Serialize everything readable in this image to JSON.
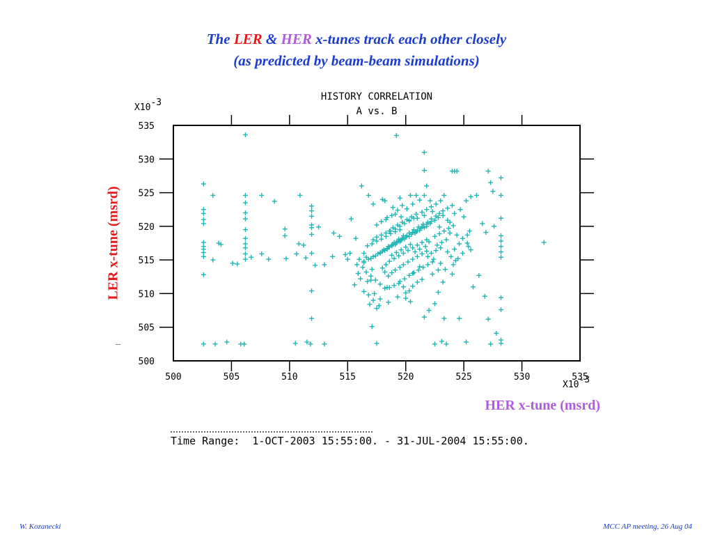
{
  "slide": {
    "title_line1": {
      "pre": "The ",
      "ler": "LER",
      "amp": " & ",
      "her": "HER",
      "post": " x-tunes track each other closely"
    },
    "title_line2": "(as predicted by beam-beam simulations)",
    "ylabel": "LER x-tune (msrd)",
    "xlabel": "HER x-tune (msrd)",
    "time_range_label": "Time Range:",
    "time_range_value": "1-OCT-2003 15:55:00. - 31-JUL-2004 15:55:00.",
    "footer_left": "W. Kozanecki",
    "footer_right": "MCC AP meeting, 26 Aug 04"
  },
  "colors": {
    "title": "#1a3ccf",
    "ler": "#e8191b",
    "her": "#b15ce0",
    "points": "#20b5b5"
  },
  "chart_data": {
    "type": "scatter",
    "title": "HISTORY CORRELATION",
    "subtitle": "A vs. B",
    "x_multiplier": "X10-3",
    "y_multiplier": "X10-3",
    "xlim": [
      500,
      535
    ],
    "ylim": [
      500,
      535
    ],
    "xticks": [
      "500",
      "505",
      "510",
      "515",
      "520",
      "525",
      "530",
      "535"
    ],
    "yticks": [
      "500",
      "505",
      "510",
      "515",
      "520",
      "525",
      "530",
      "535"
    ],
    "marker": "+",
    "grid": false,
    "points": [
      [
        502.6,
        526.3
      ],
      [
        502.6,
        522.5
      ],
      [
        502.6,
        521.9
      ],
      [
        502.6,
        521.0
      ],
      [
        502.6,
        520.4
      ],
      [
        502.6,
        517.6
      ],
      [
        502.6,
        517.0
      ],
      [
        502.6,
        516.6
      ],
      [
        502.6,
        516.1
      ],
      [
        502.6,
        515.5
      ],
      [
        502.6,
        512.8
      ],
      [
        502.6,
        502.5
      ],
      [
        503.4,
        524.6
      ],
      [
        503.4,
        515.0
      ],
      [
        503.9,
        517.5
      ],
      [
        504.1,
        517.3
      ],
      [
        503.6,
        502.5
      ],
      [
        504.6,
        502.8
      ],
      [
        505.1,
        514.5
      ],
      [
        505.5,
        514.4
      ],
      [
        505.8,
        502.5
      ],
      [
        506.1,
        502.5
      ],
      [
        506.2,
        533.6
      ],
      [
        506.2,
        524.6
      ],
      [
        506.2,
        523.5
      ],
      [
        506.2,
        522.0
      ],
      [
        506.2,
        521.1
      ],
      [
        506.2,
        519.5
      ],
      [
        506.2,
        518.2
      ],
      [
        506.2,
        517.4
      ],
      [
        506.2,
        516.8
      ],
      [
        506.2,
        515.9
      ],
      [
        506.2,
        515.1
      ],
      [
        506.7,
        515.4
      ],
      [
        507.6,
        524.6
      ],
      [
        507.6,
        515.9
      ],
      [
        508.2,
        515.1
      ],
      [
        508.7,
        523.7
      ],
      [
        509.6,
        519.6
      ],
      [
        509.6,
        518.6
      ],
      [
        509.7,
        515.2
      ],
      [
        510.5,
        502.6
      ],
      [
        510.9,
        524.6
      ],
      [
        510.8,
        517.4
      ],
      [
        510.6,
        515.9
      ],
      [
        511.5,
        502.8
      ],
      [
        511.8,
        502.5
      ],
      [
        511.9,
        523.0
      ],
      [
        511.9,
        522.3
      ],
      [
        511.9,
        521.5
      ],
      [
        511.9,
        520.2
      ],
      [
        511.9,
        519.8
      ],
      [
        511.9,
        518.8
      ],
      [
        511.9,
        516.0
      ],
      [
        511.9,
        510.4
      ],
      [
        511.9,
        506.3
      ],
      [
        512.5,
        519.9
      ],
      [
        511.2,
        517.2
      ],
      [
        511.4,
        515.3
      ],
      [
        512.2,
        514.2
      ],
      [
        513.0,
        502.5
      ],
      [
        513.0,
        514.3
      ],
      [
        513.8,
        519.0
      ],
      [
        513.7,
        515.5
      ],
      [
        514.3,
        518.5
      ],
      [
        514.8,
        515.8
      ],
      [
        515.0,
        515.1
      ],
      [
        515.2,
        516.0
      ],
      [
        515.3,
        521.1
      ],
      [
        515.7,
        518.2
      ],
      [
        515.8,
        514.3
      ],
      [
        516.2,
        526.0
      ],
      [
        516.4,
        514.6
      ],
      [
        516.6,
        515.4
      ],
      [
        516.8,
        524.6
      ],
      [
        517.0,
        512.0
      ],
      [
        517.2,
        523.3
      ],
      [
        517.5,
        502.6
      ],
      [
        518.0,
        524.0
      ],
      [
        518.2,
        523.8
      ],
      [
        518.9,
        522.8
      ],
      [
        519.2,
        533.5
      ],
      [
        519.5,
        524.2
      ],
      [
        520.4,
        524.6
      ],
      [
        520.9,
        524.6
      ],
      [
        521.6,
        531.0
      ],
      [
        521.6,
        528.3
      ],
      [
        521.8,
        526.0
      ],
      [
        522.5,
        502.5
      ],
      [
        523.1,
        502.9
      ],
      [
        523.3,
        524.6
      ],
      [
        523.5,
        502.5
      ],
      [
        523.8,
        520.6
      ],
      [
        523.8,
        519.0
      ],
      [
        524.0,
        528.2
      ],
      [
        524.2,
        528.2
      ],
      [
        524.4,
        528.2
      ],
      [
        524.0,
        512.9
      ],
      [
        523.3,
        506.3
      ],
      [
        524.6,
        506.3
      ],
      [
        525.2,
        502.8
      ],
      [
        525.3,
        517.5
      ],
      [
        525.6,
        516.5
      ],
      [
        525.8,
        511.0
      ],
      [
        526.3,
        512.7
      ],
      [
        526.6,
        520.4
      ],
      [
        526.9,
        519.1
      ],
      [
        527.1,
        528.2
      ],
      [
        527.3,
        526.5
      ],
      [
        527.5,
        525.2
      ],
      [
        526.8,
        509.6
      ],
      [
        527.1,
        506.2
      ],
      [
        527.3,
        502.5
      ],
      [
        527.6,
        520.0
      ],
      [
        527.8,
        504.1
      ],
      [
        528.2,
        527.2
      ],
      [
        528.2,
        524.6
      ],
      [
        528.2,
        521.2
      ],
      [
        528.2,
        518.6
      ],
      [
        528.2,
        517.8
      ],
      [
        528.2,
        517.0
      ],
      [
        528.2,
        516.2
      ],
      [
        528.2,
        515.4
      ],
      [
        528.2,
        509.4
      ],
      [
        528.2,
        507.6
      ],
      [
        528.2,
        503.1
      ],
      [
        528.2,
        502.6
      ],
      [
        531.9,
        517.6
      ],
      [
        516.7,
        511.8
      ],
      [
        516.9,
        508.4
      ],
      [
        517.1,
        505.1
      ],
      [
        517.3,
        510.0
      ],
      [
        517.5,
        507.8
      ],
      [
        517.1,
        513.6
      ],
      [
        516.4,
        516.0
      ],
      [
        516.0,
        515.1
      ],
      [
        517.8,
        509.2
      ],
      [
        518.2,
        513.2
      ],
      [
        518.4,
        510.9
      ],
      [
        519.0,
        517.6
      ],
      [
        519.4,
        518.1
      ],
      [
        519.8,
        518.6
      ],
      [
        520.3,
        519.0
      ],
      [
        520.7,
        519.5
      ],
      [
        521.1,
        519.9
      ],
      [
        521.5,
        520.3
      ],
      [
        521.9,
        520.6
      ],
      [
        522.2,
        521.1
      ],
      [
        522.6,
        521.5
      ],
      [
        522.9,
        521.9
      ],
      [
        523.2,
        522.3
      ],
      [
        523.6,
        522.7
      ],
      [
        524.0,
        523.1
      ],
      [
        518.4,
        516.6
      ],
      [
        518.8,
        517.1
      ],
      [
        519.2,
        517.5
      ],
      [
        519.6,
        517.9
      ],
      [
        520.0,
        518.4
      ],
      [
        520.5,
        518.8
      ],
      [
        520.9,
        519.2
      ],
      [
        521.3,
        519.7
      ],
      [
        521.8,
        520.0
      ],
      [
        522.1,
        520.4
      ],
      [
        522.5,
        520.9
      ],
      [
        522.8,
        521.3
      ],
      [
        523.2,
        521.6
      ],
      [
        517.8,
        516.1
      ],
      [
        518.1,
        516.5
      ],
      [
        518.5,
        517.0
      ],
      [
        518.9,
        517.3
      ],
      [
        519.3,
        517.8
      ],
      [
        519.7,
        518.2
      ],
      [
        520.1,
        518.6
      ],
      [
        520.6,
        519.1
      ],
      [
        521.0,
        519.4
      ],
      [
        521.4,
        519.9
      ],
      [
        521.8,
        520.3
      ],
      [
        522.2,
        520.7
      ],
      [
        517.0,
        515.2
      ],
      [
        517.4,
        515.6
      ],
      [
        517.8,
        516.0
      ],
      [
        518.2,
        516.4
      ],
      [
        518.6,
        516.9
      ],
      [
        519.1,
        517.3
      ],
      [
        519.5,
        517.7
      ],
      [
        519.9,
        518.1
      ],
      [
        520.3,
        518.5
      ],
      [
        520.8,
        519.0
      ],
      [
        521.2,
        519.4
      ],
      [
        521.6,
        519.8
      ],
      [
        516.4,
        514.8
      ],
      [
        516.8,
        515.1
      ],
      [
        517.2,
        515.5
      ],
      [
        517.6,
        515.9
      ],
      [
        518.0,
        516.3
      ],
      [
        518.4,
        516.7
      ],
      [
        518.8,
        517.2
      ],
      [
        519.2,
        517.6
      ],
      [
        519.6,
        518.0
      ],
      [
        520.0,
        518.4
      ],
      [
        518.0,
        513.8
      ],
      [
        518.3,
        514.3
      ],
      [
        518.6,
        514.8
      ],
      [
        519.0,
        515.2
      ],
      [
        519.4,
        515.6
      ],
      [
        519.8,
        516.0
      ],
      [
        520.2,
        516.4
      ],
      [
        520.6,
        516.8
      ],
      [
        521.0,
        517.2
      ],
      [
        521.4,
        517.6
      ],
      [
        521.8,
        518.0
      ],
      [
        518.5,
        512.6
      ],
      [
        518.8,
        513.1
      ],
      [
        519.1,
        513.5
      ],
      [
        519.5,
        513.9
      ],
      [
        519.8,
        514.3
      ],
      [
        520.2,
        514.7
      ],
      [
        520.6,
        515.1
      ],
      [
        521.0,
        515.5
      ],
      [
        521.4,
        515.9
      ],
      [
        521.8,
        516.3
      ],
      [
        519.5,
        511.8
      ],
      [
        519.9,
        512.2
      ],
      [
        520.3,
        512.7
      ],
      [
        520.7,
        513.1
      ],
      [
        521.1,
        513.5
      ],
      [
        521.5,
        513.9
      ],
      [
        521.9,
        514.3
      ],
      [
        522.3,
        514.7
      ],
      [
        518.6,
        519.3
      ],
      [
        518.9,
        519.8
      ],
      [
        519.3,
        520.2
      ],
      [
        519.7,
        520.6
      ],
      [
        520.1,
        521.0
      ],
      [
        520.5,
        521.4
      ],
      [
        520.9,
        521.8
      ],
      [
        521.4,
        522.1
      ],
      [
        521.8,
        522.5
      ],
      [
        522.2,
        522.9
      ],
      [
        522.6,
        523.3
      ],
      [
        523.0,
        523.8
      ],
      [
        517.2,
        518.0
      ],
      [
        517.5,
        518.4
      ],
      [
        517.9,
        518.7
      ],
      [
        518.3,
        519.0
      ],
      [
        518.7,
        519.3
      ],
      [
        519.1,
        519.6
      ],
      [
        519.5,
        520.0
      ],
      [
        519.9,
        520.4
      ],
      [
        520.3,
        520.8
      ],
      [
        520.7,
        521.2
      ],
      [
        516.7,
        517.1
      ],
      [
        517.1,
        517.4
      ],
      [
        517.5,
        517.8
      ],
      [
        517.9,
        518.1
      ],
      [
        518.3,
        518.5
      ],
      [
        518.7,
        518.9
      ],
      [
        519.1,
        519.2
      ],
      [
        519.5,
        519.5
      ],
      [
        522.5,
        518.5
      ],
      [
        522.9,
        518.9
      ],
      [
        523.3,
        519.3
      ],
      [
        523.7,
        519.7
      ],
      [
        524.1,
        520.1
      ],
      [
        522.7,
        517.2
      ],
      [
        523.1,
        517.6
      ],
      [
        523.5,
        518.0
      ],
      [
        522.2,
        516.0
      ],
      [
        522.6,
        516.4
      ],
      [
        523.0,
        516.8
      ],
      [
        516.3,
        513.9
      ],
      [
        516.6,
        513.2
      ],
      [
        517.0,
        512.6
      ],
      [
        517.4,
        512.0
      ],
      [
        517.8,
        511.4
      ],
      [
        518.2,
        510.8
      ],
      [
        518.6,
        510.9
      ],
      [
        519.0,
        511.2
      ],
      [
        519.4,
        511.5
      ],
      [
        519.8,
        511.0
      ],
      [
        520.3,
        510.4
      ],
      [
        520.6,
        511.1
      ],
      [
        521.0,
        511.7
      ],
      [
        521.4,
        512.1
      ],
      [
        520.0,
        509.3
      ],
      [
        520.4,
        508.8
      ],
      [
        521.6,
        506.5
      ],
      [
        522.0,
        507.5
      ],
      [
        522.5,
        508.5
      ],
      [
        522.8,
        510.2
      ],
      [
        523.2,
        511.7
      ],
      [
        520.6,
        513.0
      ],
      [
        521.2,
        514.0
      ],
      [
        521.9,
        515.5
      ],
      [
        522.4,
        515.1
      ],
      [
        523.0,
        514.5
      ],
      [
        523.4,
        513.6
      ],
      [
        524.1,
        514.3
      ],
      [
        524.5,
        515.2
      ],
      [
        524.9,
        516.0
      ],
      [
        525.4,
        517.0
      ],
      [
        522.9,
        519.9
      ],
      [
        523.6,
        520.9
      ],
      [
        524.2,
        521.9
      ],
      [
        524.7,
        522.5
      ],
      [
        525.2,
        523.8
      ],
      [
        525.6,
        524.4
      ],
      [
        526.1,
        524.6
      ],
      [
        525.0,
        521.4
      ],
      [
        524.4,
        518.7
      ],
      [
        525.5,
        519.3
      ],
      [
        518.3,
        521.0
      ],
      [
        518.8,
        521.6
      ],
      [
        519.3,
        522.4
      ],
      [
        519.7,
        523.1
      ],
      [
        520.1,
        522.6
      ],
      [
        520.6,
        523.3
      ],
      [
        521.2,
        523.9
      ],
      [
        521.6,
        524.6
      ],
      [
        522.1,
        523.8
      ],
      [
        515.9,
        513.0
      ],
      [
        516.1,
        512.2
      ],
      [
        515.6,
        511.3
      ],
      [
        516.4,
        510.3
      ],
      [
        516.8,
        509.8
      ],
      [
        517.2,
        509.0
      ],
      [
        517.7,
        508.2
      ],
      [
        518.5,
        508.7
      ],
      [
        519.3,
        509.5
      ],
      [
        520.0,
        510.1
      ],
      [
        517.5,
        520.2
      ],
      [
        517.9,
        520.7
      ],
      [
        518.4,
        521.3
      ],
      [
        519.1,
        521.8
      ],
      [
        519.6,
        521.4
      ],
      [
        520.3,
        520.9
      ],
      [
        521.0,
        521.2
      ],
      [
        521.6,
        521.6
      ],
      [
        522.3,
        522.2
      ],
      [
        520.8,
        516.2
      ],
      [
        521.2,
        516.6
      ],
      [
        521.7,
        517.0
      ],
      [
        522.0,
        517.7
      ],
      [
        520.4,
        517.3
      ],
      [
        520.0,
        516.9
      ],
      [
        519.6,
        516.5
      ],
      [
        519.2,
        516.1
      ],
      [
        518.8,
        515.7
      ],
      [
        524.6,
        517.4
      ],
      [
        524.9,
        518.2
      ],
      [
        525.3,
        518.7
      ],
      [
        524.2,
        516.6
      ],
      [
        523.6,
        516.2
      ],
      [
        523.9,
        515.5
      ],
      [
        524.3,
        514.9
      ],
      [
        522.8,
        513.5
      ],
      [
        522.3,
        512.9
      ]
    ]
  }
}
